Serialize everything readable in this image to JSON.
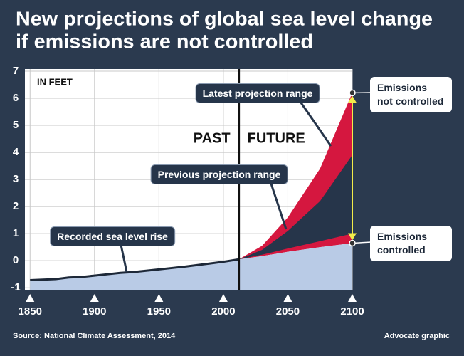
{
  "chart_data": {
    "type": "area",
    "title": "New projections of global sea level change",
    "subtitle": "if emissions are not controlled",
    "y_unit_label": "IN FEET",
    "past_label": "PAST",
    "future_label": "FUTURE",
    "divider_x": 2012,
    "annotations": {
      "latest": "Latest projection range"
    },
    "source": "Source: National Climate Assessment, 2014",
    "credit": "Advocate graphic",
    "xlim": [
      1846,
      2100
    ],
    "xticks": [
      1850,
      1900,
      1950,
      2000,
      2050,
      2100
    ],
    "ylim": [
      -1.1,
      7
    ],
    "yticks": [
      -1,
      0,
      1,
      2,
      3,
      4,
      5,
      6,
      7
    ],
    "grid": true,
    "series": [
      {
        "name": "Recorded sea level rise",
        "color": "#b9cbe6",
        "x": [
          1850,
          1870,
          1880,
          1890,
          1900,
          1910,
          1920,
          1930,
          1940,
          1950,
          1960,
          1970,
          1980,
          1990,
          2000,
          2012
        ],
        "values": [
          -0.72,
          -0.68,
          -0.62,
          -0.6,
          -0.55,
          -0.5,
          -0.45,
          -0.42,
          -0.37,
          -0.32,
          -0.27,
          -0.22,
          -0.16,
          -0.1,
          -0.04,
          0.05
        ]
      },
      {
        "name": "Emissions controlled",
        "color": "#b9cbe6",
        "x": [
          2012,
          2030,
          2050,
          2075,
          2100
        ],
        "values": [
          0.05,
          0.17,
          0.33,
          0.5,
          0.65
        ]
      },
      {
        "name": "Emissions not controlled",
        "color": "#d5173f",
        "x": [
          2012,
          2030,
          2050,
          2075,
          2100
        ],
        "values": [
          0.05,
          0.55,
          1.6,
          3.4,
          6.2
        ]
      }
    ],
    "bands": [
      {
        "name": "Previous projection range",
        "color": "#26354a",
        "x": [
          2012,
          2030,
          2050,
          2075,
          2100
        ],
        "low": [
          0.05,
          0.22,
          0.45,
          0.72,
          1.0
        ],
        "high": [
          0.05,
          0.4,
          1.1,
          2.2,
          3.9
        ]
      }
    ],
    "arrow_color": "#f2ec4a"
  }
}
